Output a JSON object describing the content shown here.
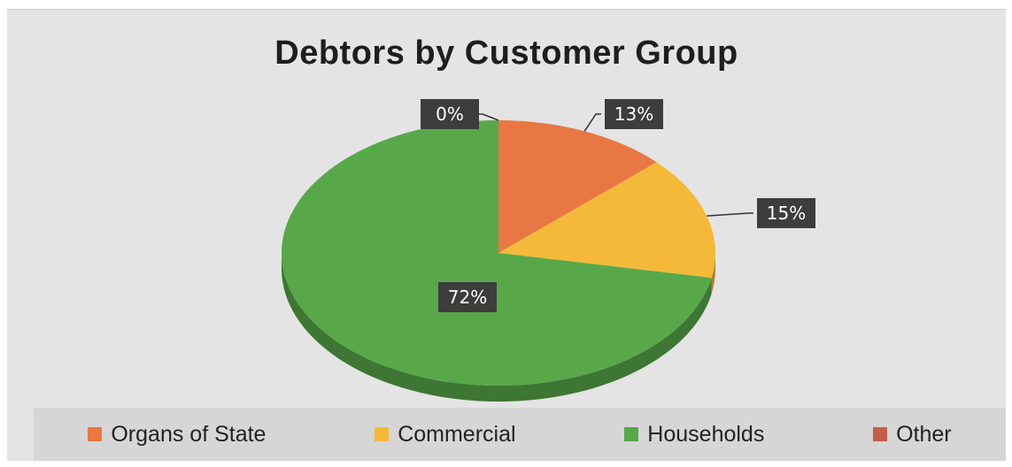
{
  "chart_data": {
    "type": "pie",
    "title": "Debtors by Customer Group",
    "categories": [
      "Organs of State",
      "Commercial",
      "Households",
      "Other"
    ],
    "values": [
      13,
      15,
      72,
      0
    ],
    "value_labels": [
      "13%",
      "15%",
      "72%",
      "0%"
    ],
    "colors": [
      "#e87744",
      "#f5b93a",
      "#58a84a",
      "#c0604a"
    ],
    "legend_position": "bottom"
  }
}
